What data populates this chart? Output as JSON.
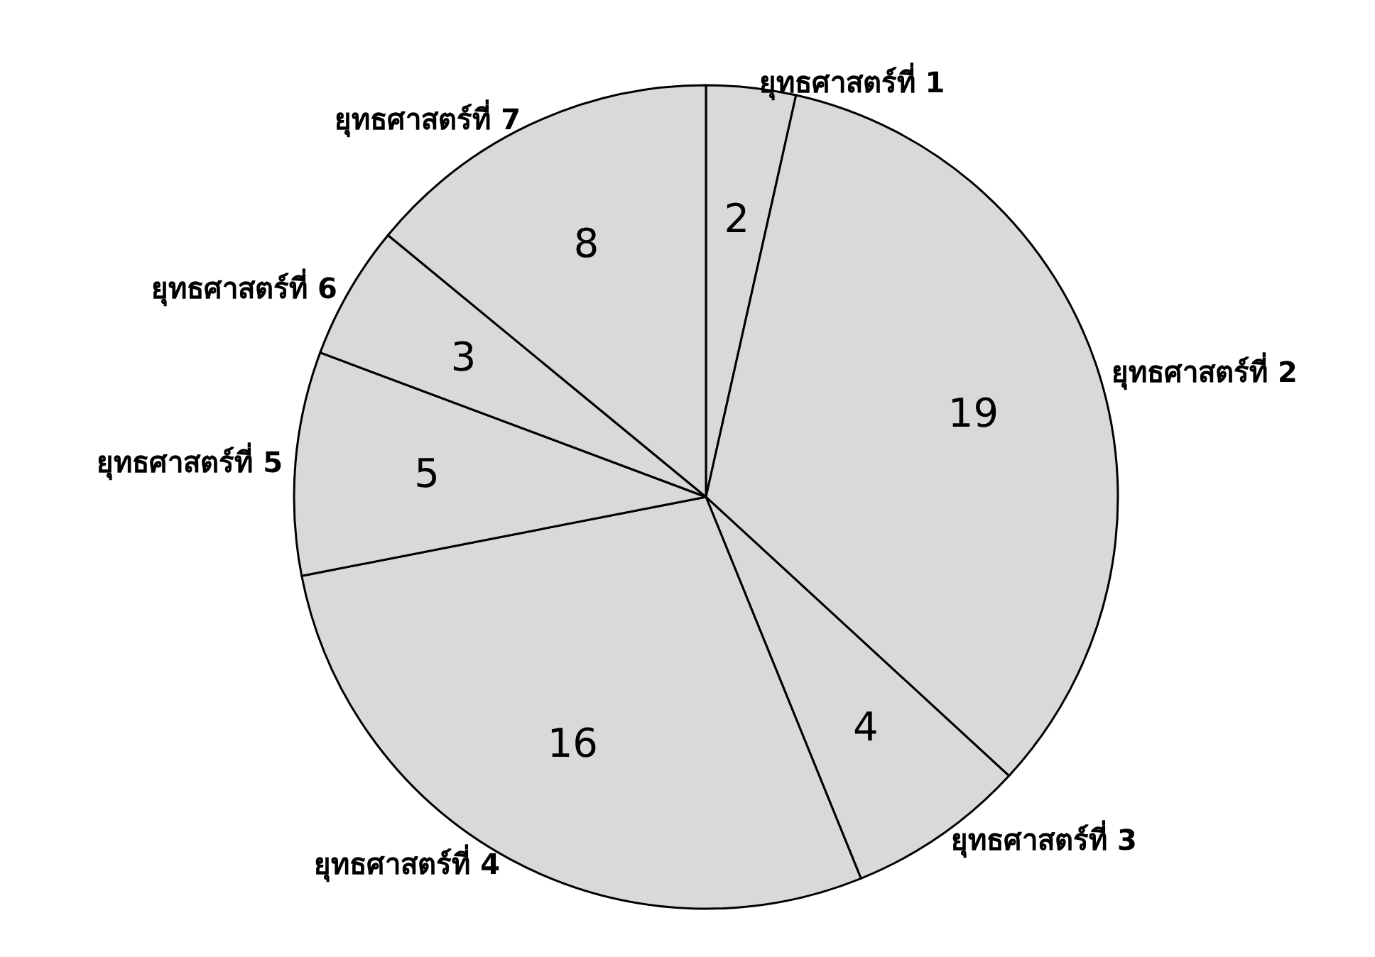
{
  "chart_data": {
    "type": "pie",
    "categories": [
      "ยุทธศาสตร์ที่ 1",
      "ยุทธศาสตร์ที่ 2",
      "ยุทธศาสตร์ที่ 3",
      "ยุทธศาสตร์ที่ 4",
      "ยุทธศาสตร์ที่ 5",
      "ยุทธศาสตร์ที่ 6",
      "ยุทธศาสตร์ที่ 7"
    ],
    "values": [
      2,
      19,
      4,
      16,
      5,
      3,
      8
    ],
    "colors": [
      "#d9d9d9",
      "#d9d9d9",
      "#d9d9d9",
      "#d9d9d9",
      "#d9d9d9",
      "#d9d9d9",
      "#d9d9d9"
    ],
    "data_labels": true,
    "legend": false
  }
}
